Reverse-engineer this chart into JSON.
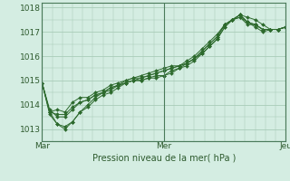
{
  "background_color": "#d4ede2",
  "grid_color": "#a8ccb8",
  "line_color": "#2d6a2d",
  "marker_color": "#2d6a2d",
  "xlabel": "Pression niveau de la mer( hPa )",
  "xlabel_color": "#2d5a2d",
  "tick_label_color": "#2d5a2d",
  "ylim": [
    1012.5,
    1018.2
  ],
  "yticks": [
    1013,
    1014,
    1015,
    1016,
    1017,
    1018
  ],
  "xtick_positions": [
    0,
    48,
    96
  ],
  "xtick_labels": [
    "Mar",
    "Mer",
    "Jeu"
  ],
  "vline_positions": [
    0,
    48,
    96
  ],
  "series": [
    [
      1014.9,
      1013.7,
      1013.8,
      1013.7,
      1014.1,
      1014.3,
      1014.3,
      1014.5,
      1014.6,
      1014.8,
      1014.9,
      1015.0,
      1015.1,
      1015.1,
      1015.2,
      1015.3,
      1015.4,
      1015.5,
      1015.6,
      1015.8,
      1016.0,
      1016.3,
      1016.6,
      1016.9,
      1017.3,
      1017.5,
      1017.7,
      1017.6,
      1017.5,
      1017.3,
      1017.1,
      1017.1,
      1017.2
    ],
    [
      1014.9,
      1013.7,
      1013.2,
      1013.0,
      1013.3,
      1013.7,
      1013.9,
      1014.2,
      1014.4,
      1014.5,
      1014.7,
      1014.9,
      1015.0,
      1015.0,
      1015.1,
      1015.2,
      1015.2,
      1015.3,
      1015.5,
      1015.7,
      1015.9,
      1016.2,
      1016.5,
      1016.8,
      1017.3,
      1017.5,
      1017.7,
      1017.4,
      1017.2,
      1017.0,
      1017.1,
      1017.1,
      1017.2
    ],
    [
      1014.9,
      1013.8,
      1013.5,
      1013.5,
      1013.8,
      1014.1,
      1014.2,
      1014.4,
      1014.5,
      1014.7,
      1014.8,
      1014.9,
      1015.0,
      1015.1,
      1015.2,
      1015.3,
      1015.4,
      1015.5,
      1015.6,
      1015.7,
      1015.9,
      1016.2,
      1016.5,
      1016.8,
      1017.3,
      1017.5,
      1017.6,
      1017.3,
      1017.3,
      1017.1,
      1017.1,
      1017.1,
      1017.2
    ],
    [
      1014.9,
      1013.6,
      1013.2,
      1013.1,
      1013.3,
      1013.7,
      1014.0,
      1014.3,
      1014.5,
      1014.6,
      1014.8,
      1014.9,
      1015.0,
      1015.0,
      1015.1,
      1015.1,
      1015.2,
      1015.4,
      1015.5,
      1015.6,
      1015.8,
      1016.1,
      1016.4,
      1016.7,
      1017.2,
      1017.5,
      1017.7,
      1017.4,
      1017.3,
      1017.1,
      1017.1,
      1017.1,
      1017.2
    ],
    [
      1014.9,
      1013.7,
      1013.6,
      1013.6,
      1013.9,
      1014.1,
      1014.2,
      1014.4,
      1014.5,
      1014.7,
      1014.8,
      1015.0,
      1015.1,
      1015.2,
      1015.3,
      1015.4,
      1015.5,
      1015.6,
      1015.6,
      1015.7,
      1015.9,
      1016.1,
      1016.4,
      1016.7,
      1017.2,
      1017.5,
      1017.6,
      1017.4,
      1017.3,
      1017.1,
      1017.1,
      1017.1,
      1017.2
    ]
  ]
}
